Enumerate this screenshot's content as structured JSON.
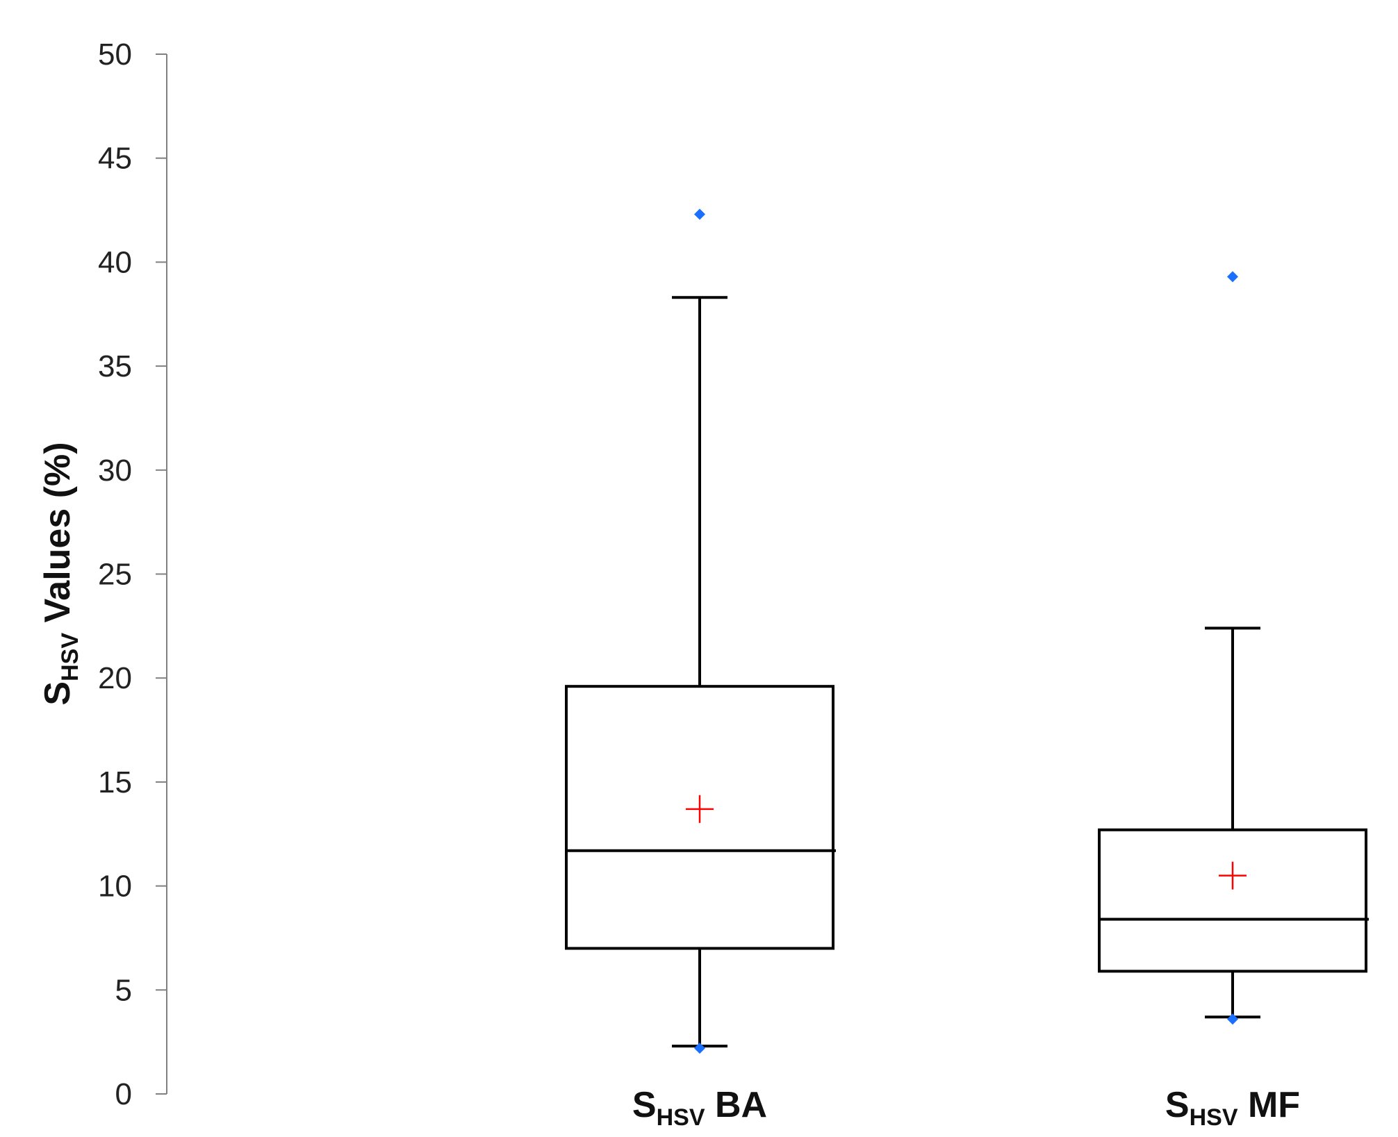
{
  "chart_data": {
    "type": "boxplot",
    "title": "",
    "ylabel": {
      "main": "S",
      "sub": "HSV",
      "rest": " Values (%)"
    },
    "ylim": [
      0,
      50
    ],
    "yticks": [
      0,
      5,
      10,
      15,
      20,
      25,
      30,
      35,
      40,
      45,
      50
    ],
    "grid": false,
    "categories": [
      {
        "main": "S",
        "sub": "HSV",
        "rest": " BA"
      },
      {
        "main": "S",
        "sub": "HSV",
        "rest": " MF"
      }
    ],
    "boxes": [
      {
        "whisker_low": 2.3,
        "q1": 7.0,
        "median": 11.7,
        "q3": 19.6,
        "whisker_high": 38.3,
        "mean": 13.7,
        "points": [
          42.3,
          2.2
        ]
      },
      {
        "whisker_low": 3.7,
        "q1": 5.9,
        "median": 8.4,
        "q3": 12.7,
        "whisker_high": 22.4,
        "mean": 10.5,
        "points": [
          39.3,
          3.6
        ]
      }
    ],
    "colors": {
      "box": "#000000",
      "mean_marker": "#ff0000",
      "points": "#1a6fff",
      "axis": "#808080"
    }
  }
}
